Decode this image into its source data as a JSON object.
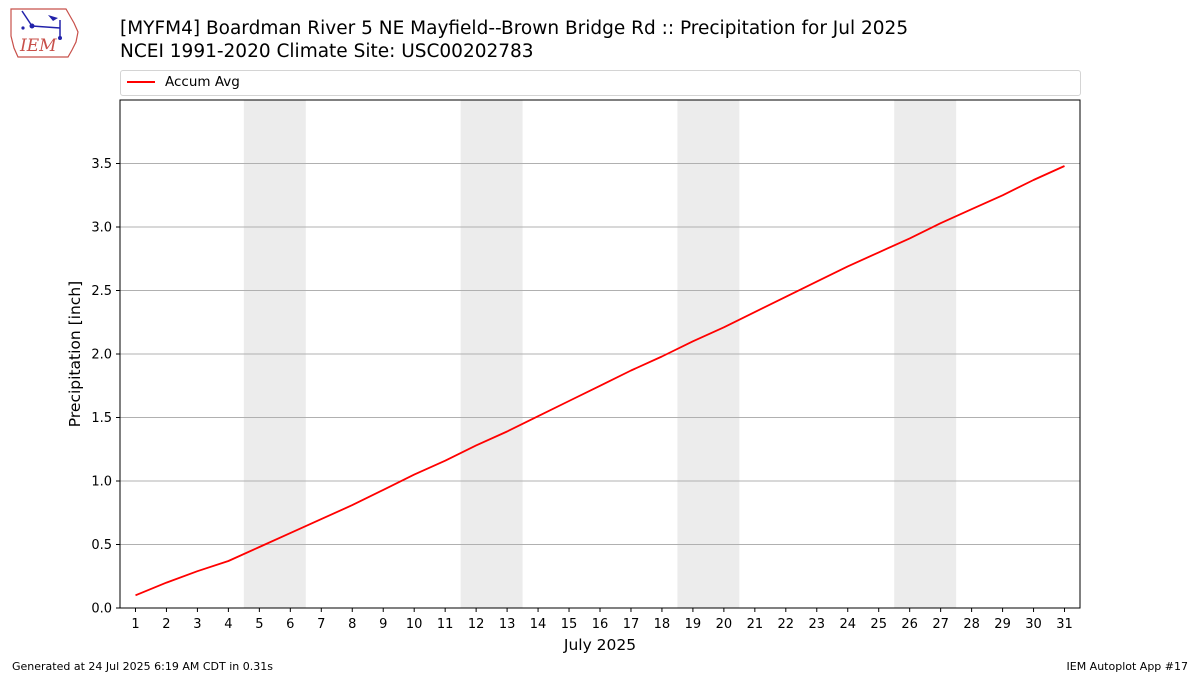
{
  "logo": {
    "text": "IEM"
  },
  "title": {
    "line1": "[MYFM4] Boardman River 5 NE Mayfield--Brown Bridge Rd :: Precipitation for Jul 2025",
    "line2": "NCEI 1991-2020 Climate Site: USC00202783"
  },
  "footer": {
    "left": "Generated at 24 Jul 2025 6:19 AM CDT in 0.31s",
    "right": "IEM Autoplot App #17"
  },
  "colors": {
    "series": "#ff0000",
    "weekend_band": "#ececec",
    "grid": "#b0b0b0"
  },
  "chart_data": {
    "type": "line",
    "title": "",
    "xlabel": "July 2025",
    "ylabel": "Precipitation [inch]",
    "xlim": [
      0.5,
      31.5
    ],
    "ylim": [
      0,
      4.0
    ],
    "yticks": [
      0.0,
      0.5,
      1.0,
      1.5,
      2.0,
      2.5,
      3.0,
      3.5
    ],
    "ytick_labels": [
      "0.0",
      "0.5",
      "1.0",
      "1.5",
      "2.0",
      "2.5",
      "3.0",
      "3.5"
    ],
    "xticks": [
      1,
      2,
      3,
      4,
      5,
      6,
      7,
      8,
      9,
      10,
      11,
      12,
      13,
      14,
      15,
      16,
      17,
      18,
      19,
      20,
      21,
      22,
      23,
      24,
      25,
      26,
      27,
      28,
      29,
      30,
      31
    ],
    "grid": "horizontal",
    "legend_placement": "top",
    "weekend_bands": [
      [
        4.5,
        6.5
      ],
      [
        11.5,
        13.5
      ],
      [
        18.5,
        20.5
      ],
      [
        25.5,
        27.5
      ]
    ],
    "x": [
      1,
      2,
      3,
      4,
      5,
      6,
      7,
      8,
      9,
      10,
      11,
      12,
      13,
      14,
      15,
      16,
      17,
      18,
      19,
      20,
      21,
      22,
      23,
      24,
      25,
      26,
      27,
      28,
      29,
      30,
      31
    ],
    "series": [
      {
        "name": "Accum Avg",
        "values": [
          0.1,
          0.2,
          0.29,
          0.37,
          0.48,
          0.59,
          0.7,
          0.81,
          0.93,
          1.05,
          1.16,
          1.28,
          1.39,
          1.51,
          1.63,
          1.75,
          1.87,
          1.98,
          2.1,
          2.21,
          2.33,
          2.45,
          2.57,
          2.69,
          2.8,
          2.91,
          3.03,
          3.14,
          3.25,
          3.37,
          3.48
        ]
      }
    ]
  }
}
